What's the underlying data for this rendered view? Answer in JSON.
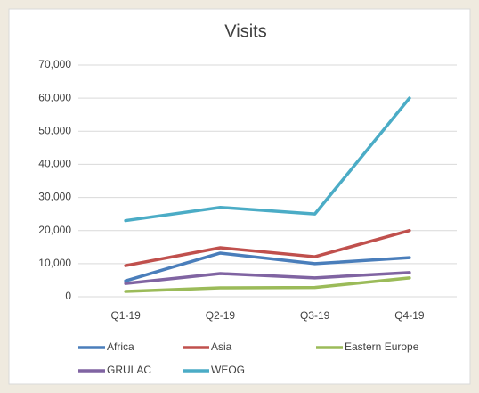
{
  "chart_data": {
    "type": "line",
    "title": "Visits",
    "categories": [
      "Q1-19",
      "Q2-19",
      "Q3-19",
      "Q4-19"
    ],
    "series": [
      {
        "name": "Africa",
        "color": "#4a7ebb",
        "values": [
          4800,
          13200,
          10000,
          11800
        ]
      },
      {
        "name": "Asia",
        "color": "#c0504d",
        "values": [
          9400,
          14800,
          12100,
          20000
        ]
      },
      {
        "name": "Eastern Europe",
        "color": "#9bbb59",
        "values": [
          1600,
          2700,
          2800,
          5700
        ]
      },
      {
        "name": "GRULAC",
        "color": "#8064a2",
        "values": [
          4000,
          7000,
          5700,
          7300
        ]
      },
      {
        "name": "WEOG",
        "color": "#4bacc6",
        "values": [
          23000,
          27000,
          25000,
          60000
        ]
      }
    ],
    "ylim": [
      0,
      70000
    ],
    "yticks": [
      {
        "value": 0,
        "label": "0"
      },
      {
        "value": 10000,
        "label": "10,000"
      },
      {
        "value": 20000,
        "label": "20,000"
      },
      {
        "value": 30000,
        "label": "30,000"
      },
      {
        "value": 40000,
        "label": "40,000"
      },
      {
        "value": 50000,
        "label": "50,000"
      },
      {
        "value": 60000,
        "label": "60,000"
      },
      {
        "value": 70000,
        "label": "70,000"
      }
    ],
    "grid": true,
    "legend": "bottom"
  }
}
